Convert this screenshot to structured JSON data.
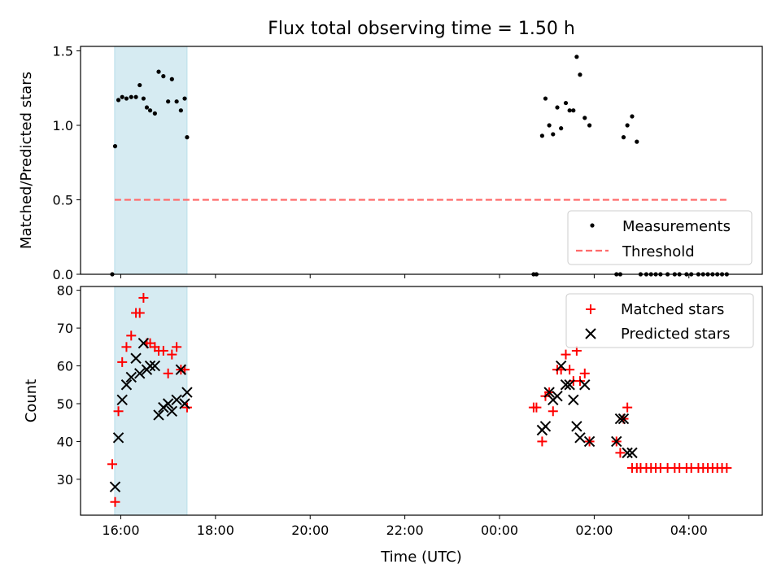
{
  "title": "Flux total observing time = 1.50 h",
  "xlabel": "Time (UTC)",
  "x_ticks": [
    "16:00",
    "18:00",
    "20:00",
    "22:00",
    "00:00",
    "02:00",
    "04:00"
  ],
  "x_tick_hours": [
    16,
    18,
    20,
    22,
    24,
    26,
    28
  ],
  "xlim_hours": [
    15.15,
    29.55
  ],
  "x_unit_note": "hours after 00:00 of first day; values > 24 are next day",
  "chart_data": [
    {
      "type": "scatter",
      "ylabel": "Matched/Predicted stars",
      "ylim": [
        0,
        1.53
      ],
      "y_ticks": [
        "0.0",
        "0.5",
        "1.0",
        "1.5"
      ],
      "y_tick_values": [
        0,
        0.5,
        1.0,
        1.5
      ],
      "legend_position": "lower-right",
      "shaded_span": {
        "from": 15.87,
        "to": 17.4,
        "color": "#add8e6"
      },
      "threshold": {
        "name": "Threshold",
        "value": 0.5,
        "from": 15.87,
        "to": 28.8,
        "color": "#ff6b6b"
      },
      "series": [
        {
          "name": "Measurements",
          "color": "#000000",
          "x": [
            15.82,
            15.88,
            15.95,
            16.03,
            16.12,
            16.22,
            16.32,
            16.4,
            16.48,
            16.55,
            16.62,
            16.72,
            16.8,
            16.9,
            17.0,
            17.08,
            17.18,
            17.27,
            17.35,
            17.4,
            24.72,
            24.78,
            24.9,
            24.97,
            25.05,
            25.13,
            25.22,
            25.3,
            25.4,
            25.48,
            25.56,
            25.63,
            25.7,
            25.8,
            25.9,
            26.47,
            26.55,
            26.62,
            26.7,
            26.8,
            26.9,
            26.98,
            27.1,
            27.2,
            27.3,
            27.4,
            27.55,
            27.7,
            27.8,
            27.95,
            28.05,
            28.2,
            28.3,
            28.4,
            28.5,
            28.6,
            28.7,
            28.8
          ],
          "y": [
            0.0,
            0.86,
            1.17,
            1.19,
            1.18,
            1.19,
            1.19,
            1.27,
            1.18,
            1.12,
            1.1,
            1.08,
            1.36,
            1.33,
            1.16,
            1.31,
            1.16,
            1.1,
            1.18,
            0.92,
            0.0,
            0.0,
            0.93,
            1.18,
            1.0,
            0.94,
            1.12,
            0.98,
            1.15,
            1.1,
            1.1,
            1.46,
            1.34,
            1.05,
            1.0,
            0.0,
            0.0,
            0.92,
            1.0,
            1.06,
            0.89,
            0.0,
            0.0,
            0.0,
            0.0,
            0.0,
            0.0,
            0.0,
            0.0,
            0.0,
            0.0,
            0.0,
            0.0,
            0.0,
            0.0,
            0.0,
            0.0,
            0.0
          ]
        }
      ]
    },
    {
      "type": "scatter",
      "ylabel": "Count",
      "ylim": [
        20.5,
        81
      ],
      "y_ticks": [
        "30",
        "40",
        "50",
        "60",
        "70",
        "80"
      ],
      "y_tick_values": [
        30,
        40,
        50,
        60,
        70,
        80
      ],
      "legend_position": "upper-right",
      "shaded_span": {
        "from": 15.87,
        "to": 17.4,
        "color": "#add8e6"
      },
      "series": [
        {
          "name": "Matched stars",
          "marker": "plus",
          "color": "#ff0000",
          "x": [
            15.82,
            15.88,
            15.95,
            16.03,
            16.12,
            16.22,
            16.32,
            16.4,
            16.48,
            16.55,
            16.62,
            16.72,
            16.8,
            16.9,
            17.0,
            17.08,
            17.18,
            17.27,
            17.35,
            17.4,
            24.72,
            24.78,
            24.9,
            24.97,
            25.05,
            25.13,
            25.22,
            25.3,
            25.4,
            25.48,
            25.56,
            25.63,
            25.7,
            25.8,
            25.9,
            26.47,
            26.55,
            26.62,
            26.7,
            26.8,
            26.9,
            26.98,
            27.1,
            27.2,
            27.3,
            27.4,
            27.55,
            27.7,
            27.8,
            27.95,
            28.05,
            28.2,
            28.3,
            28.4,
            28.5,
            28.6,
            28.7,
            28.8
          ],
          "y": [
            34,
            24,
            48,
            61,
            65,
            68,
            74,
            74,
            78,
            66,
            66,
            65,
            64,
            64,
            58,
            63,
            65,
            59,
            59,
            49,
            49,
            49,
            40,
            52,
            53,
            48,
            59,
            59,
            63,
            59,
            56,
            64,
            56,
            58,
            40,
            40,
            37,
            46,
            49,
            33,
            33,
            33,
            33,
            33,
            33,
            33,
            33,
            33,
            33,
            33,
            33,
            33,
            33,
            33,
            33,
            33,
            33,
            33
          ]
        },
        {
          "name": "Predicted stars",
          "marker": "x",
          "color": "#000000",
          "x": [
            15.88,
            15.95,
            16.03,
            16.12,
            16.22,
            16.32,
            16.4,
            16.48,
            16.55,
            16.62,
            16.72,
            16.8,
            16.9,
            17.0,
            17.08,
            17.18,
            17.27,
            17.35,
            17.4,
            24.9,
            24.97,
            25.05,
            25.13,
            25.22,
            25.3,
            25.4,
            25.48,
            25.56,
            25.63,
            25.7,
            25.8,
            25.9,
            26.47,
            26.55,
            26.62,
            26.7,
            26.8
          ],
          "y": [
            28,
            41,
            51,
            55,
            57,
            62,
            58,
            66,
            59,
            60,
            60,
            47,
            49,
            50,
            48,
            51,
            59,
            50,
            53,
            43,
            44,
            53,
            51,
            52,
            60,
            55,
            55,
            51,
            44,
            41,
            55,
            40,
            40,
            46,
            46,
            37,
            37
          ]
        }
      ]
    }
  ]
}
